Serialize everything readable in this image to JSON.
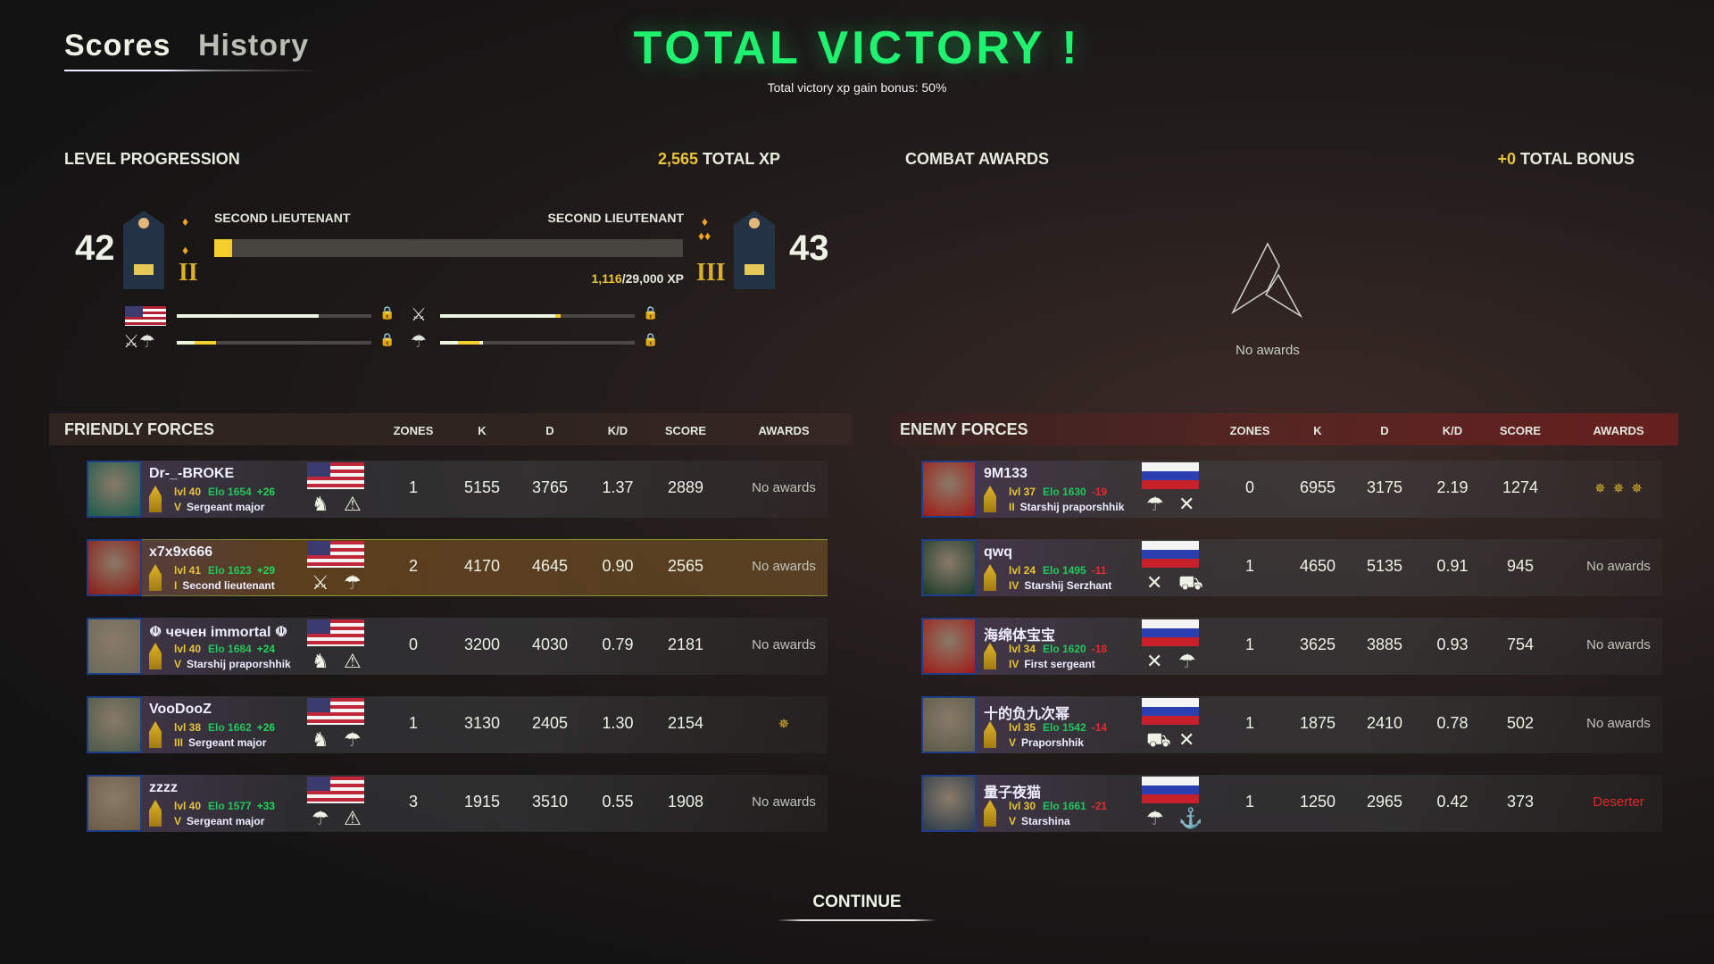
{
  "tabs": [
    {
      "label": "Scores",
      "active": true
    },
    {
      "label": "History",
      "active": false
    }
  ],
  "header": {
    "title": "TOTAL VICTORY !",
    "subtitle": "Total victory xp gain bonus: 50%"
  },
  "level_progression": {
    "title": "LEVEL PROGRESSION",
    "total_xp_value": "2,565",
    "total_xp_label": " TOTAL XP",
    "current_level": "42",
    "next_level": "43",
    "current_rank": "SECOND LIEUTENANT",
    "next_rank": "SECOND LIEUTENANT",
    "current_grade": "II",
    "next_grade": "III",
    "xp_current": "1,116",
    "xp_total": "/29,000 XP",
    "xp_fraction": 0.038,
    "unit_progress": [
      {
        "unit": "usa-flag",
        "fraction": 0.73,
        "gain": 0.0
      },
      {
        "unit": "cavalry-icon",
        "fraction": 0.62,
        "gain": 0.03
      },
      {
        "unit": "cavalry-paratrooper-icon",
        "fraction": 0.2,
        "gain": 0.2
      },
      {
        "unit": "paratrooper-icon",
        "fraction": 0.22,
        "gain": 0.01
      }
    ]
  },
  "combat_awards": {
    "title": "COMBAT AWARDS",
    "bonus_value": "+0",
    "bonus_label": " TOTAL BONUS",
    "empty_text": "No awards"
  },
  "columns": [
    "ZONES",
    "K",
    "D",
    "K/D",
    "SCORE",
    "AWARDS"
  ],
  "friendly": {
    "title": "FRIENDLY FORCES",
    "players": [
      {
        "name": "Dr-_-BROKE",
        "lvl": "lvl 40",
        "elo": "Elo 1654",
        "delta": "+26",
        "rank": "Sergeant major",
        "grade": "V",
        "zones": "1",
        "k": "5155",
        "d": "3765",
        "kd": "1.37",
        "score": "2889",
        "awards": "No awards",
        "units": [
          "infantry-icon",
          "engineer-icon"
        ]
      },
      {
        "name": "x7x9x666",
        "lvl": "lvl 41",
        "elo": "Elo 1623",
        "delta": "+29",
        "rank": "Second lieutenant",
        "grade": "I",
        "zones": "2",
        "k": "4170",
        "d": "4645",
        "kd": "0.90",
        "score": "2565",
        "awards": "No awards",
        "units": [
          "cavalry-icon",
          "paratrooper-icon"
        ],
        "highlight": true
      },
      {
        "name": "☫ чечен immortal ☫",
        "lvl": "lvl 40",
        "elo": "Elo 1684",
        "delta": "+24",
        "rank": "Starshij praporshhik",
        "grade": "V",
        "zones": "0",
        "k": "3200",
        "d": "4030",
        "kd": "0.79",
        "score": "2181",
        "awards": "No awards",
        "units": [
          "infantry-icon",
          "engineer-icon"
        ]
      },
      {
        "name": "VooDooZ",
        "lvl": "lvl 38",
        "elo": "Elo 1662",
        "delta": "+26",
        "rank": "Sergeant major",
        "grade": "III",
        "zones": "1",
        "k": "3130",
        "d": "2405",
        "kd": "1.30",
        "score": "2154",
        "awards": "",
        "award_icons": [
          "medal-icon"
        ],
        "units": [
          "infantry-icon",
          "paratrooper-icon"
        ]
      },
      {
        "name": "zzzz",
        "lvl": "lvl 40",
        "elo": "Elo 1577",
        "delta": "+33",
        "rank": "Sergeant major",
        "grade": "V",
        "zones": "3",
        "k": "1915",
        "d": "3510",
        "kd": "0.55",
        "score": "1908",
        "awards": "No awards",
        "units": [
          "paratrooper-icon",
          "engineer-icon"
        ]
      }
    ]
  },
  "enemy": {
    "title": "ENEMY FORCES",
    "players": [
      {
        "name": "9M133",
        "lvl": "lvl 37",
        "elo": "Elo 1630",
        "delta": "-19",
        "rank": "Starshij praporshhik",
        "grade": "II",
        "zones": "0",
        "k": "6955",
        "d": "3175",
        "kd": "2.19",
        "score": "1274",
        "awards": "",
        "award_icons": [
          "medal-icon",
          "medal-icon",
          "gold-star-medal-icon"
        ],
        "units": [
          "paratrooper-icon",
          "crossed-rifles-icon"
        ]
      },
      {
        "name": "qwq",
        "lvl": "lvl 24",
        "elo": "Elo 1495",
        "delta": "-11",
        "rank": "Starshij Serzhant",
        "grade": "IV",
        "zones": "1",
        "k": "4650",
        "d": "5135",
        "kd": "0.91",
        "score": "945",
        "awards": "No awards",
        "units": [
          "crossed-rifles-icon",
          "tank-icon"
        ]
      },
      {
        "name": "海绵体宝宝",
        "lvl": "lvl 34",
        "elo": "Elo 1620",
        "delta": "-18",
        "rank": "First sergeant",
        "grade": "IV",
        "zones": "1",
        "k": "3625",
        "d": "3885",
        "kd": "0.93",
        "score": "754",
        "awards": "No awards",
        "units": [
          "crossed-rifles-icon",
          "paratrooper-icon"
        ]
      },
      {
        "name": "十的负九次幂",
        "lvl": "lvl 35",
        "elo": "Elo 1542",
        "delta": "-14",
        "rank": "Praporshhik",
        "grade": "V",
        "zones": "1",
        "k": "1875",
        "d": "2410",
        "kd": "0.78",
        "score": "502",
        "awards": "No awards",
        "units": [
          "tank-icon",
          "crossed-rifles-icon"
        ]
      },
      {
        "name": "量子夜猫",
        "lvl": "lvl 30",
        "elo": "Elo 1661",
        "delta": "-21",
        "rank": "Starshina",
        "grade": "V",
        "zones": "1",
        "k": "1250",
        "d": "2965",
        "kd": "0.42",
        "score": "373",
        "awards": "Deserter",
        "units": [
          "paratrooper-icon",
          "anchor-icon"
        ]
      }
    ]
  },
  "continue_label": "CONTINUE",
  "colors": {
    "victory": "#1ff26f",
    "gold": "#e9c437",
    "elo": "#21c75a",
    "loss": "#e62b2b"
  }
}
